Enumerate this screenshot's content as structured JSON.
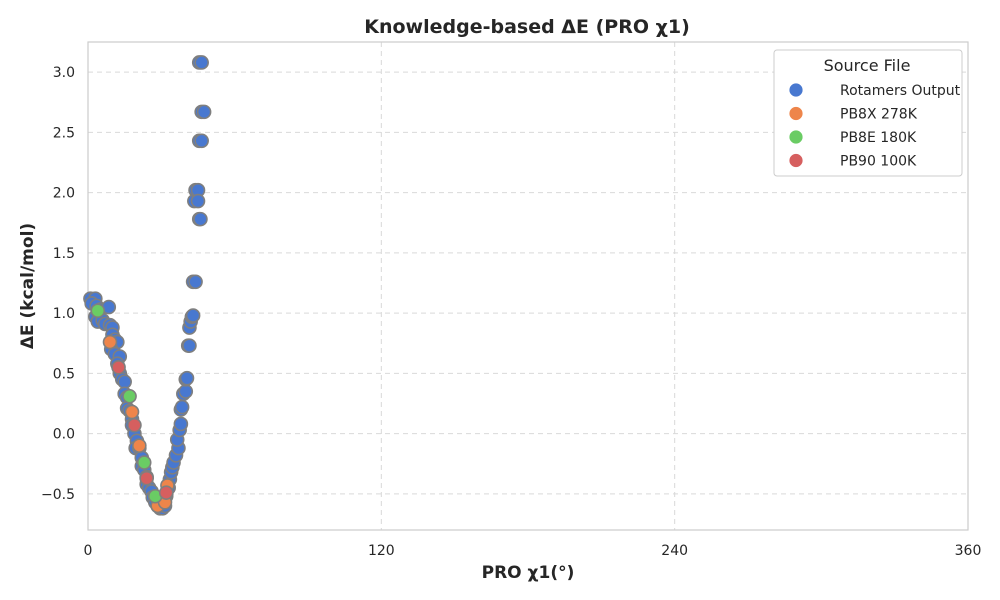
{
  "chart_data": {
    "type": "scatter",
    "title": "Knowledge-based ΔE (PRO χ1)",
    "xlabel": "PRO χ1(°)",
    "ylabel": "ΔE (kcal/mol)",
    "xlim": [
      0,
      360
    ],
    "ylim": [
      -0.8,
      3.25
    ],
    "xticks": [
      "0",
      "120",
      "240",
      "360"
    ],
    "yticks": [
      "−0.5",
      "0.0",
      "0.5",
      "1.0",
      "1.5",
      "2.0",
      "2.5",
      "3.0"
    ],
    "grid": true,
    "legend": {
      "title": "Source File",
      "placement": "top-right"
    },
    "series": [
      {
        "name": "Rotamers Output",
        "color": "#4878d0",
        "points": [
          [
            1,
            1.12
          ],
          [
            3,
            1.12
          ],
          [
            1.5,
            1.08
          ],
          [
            3.5,
            1.06
          ],
          [
            5,
            1.03
          ],
          [
            4,
            1.0
          ],
          [
            3,
            0.97
          ],
          [
            5,
            0.95
          ],
          [
            4,
            0.93
          ],
          [
            6,
            0.94
          ],
          [
            7,
            0.91
          ],
          [
            8.5,
            1.05
          ],
          [
            9,
            0.9
          ],
          [
            10,
            0.88
          ],
          [
            10,
            0.82
          ],
          [
            11,
            0.78
          ],
          [
            12,
            0.76
          ],
          [
            9.5,
            0.7
          ],
          [
            11,
            0.66
          ],
          [
            13,
            0.64
          ],
          [
            12,
            0.58
          ],
          [
            13,
            0.5
          ],
          [
            14,
            0.45
          ],
          [
            15,
            0.43
          ],
          [
            15,
            0.33
          ],
          [
            16,
            0.3
          ],
          [
            16,
            0.21
          ],
          [
            17,
            0.19
          ],
          [
            18,
            0.12
          ],
          [
            18,
            0.07
          ],
          [
            19,
            0.0
          ],
          [
            20,
            -0.06
          ],
          [
            19.5,
            -0.12
          ],
          [
            21,
            -0.12
          ],
          [
            22,
            -0.2
          ],
          [
            22,
            -0.27
          ],
          [
            23,
            -0.3
          ],
          [
            24,
            -0.36
          ],
          [
            24,
            -0.42
          ],
          [
            25,
            -0.45
          ],
          [
            26,
            -0.48
          ],
          [
            26.5,
            -0.53
          ],
          [
            27.5,
            -0.57
          ],
          [
            28.5,
            -0.6
          ],
          [
            29.5,
            -0.62
          ],
          [
            30.5,
            -0.62
          ],
          [
            31.5,
            -0.6
          ],
          [
            32,
            -0.52
          ],
          [
            33,
            -0.45
          ],
          [
            33.5,
            -0.38
          ],
          [
            34,
            -0.32
          ],
          [
            34.5,
            -0.28
          ],
          [
            35,
            -0.24
          ],
          [
            36,
            -0.18
          ],
          [
            37,
            -0.12
          ],
          [
            36.5,
            -0.05
          ],
          [
            37.5,
            0.03
          ],
          [
            38,
            0.08
          ],
          [
            38,
            0.2
          ],
          [
            38.5,
            0.22
          ],
          [
            39,
            0.33
          ],
          [
            40,
            0.35
          ],
          [
            40,
            0.45
          ],
          [
            40.5,
            0.46
          ],
          [
            41,
            0.73
          ],
          [
            41.5,
            0.73
          ],
          [
            41.5,
            0.88
          ],
          [
            42,
            0.93
          ],
          [
            42.5,
            0.97
          ],
          [
            43,
            0.98
          ],
          [
            43,
            1.26
          ],
          [
            44,
            1.26
          ],
          [
            43.5,
            1.93
          ],
          [
            44,
            2.02
          ],
          [
            45,
            2.02
          ],
          [
            45,
            1.93
          ],
          [
            45.5,
            1.78
          ],
          [
            46,
            1.78
          ],
          [
            45.5,
            2.43
          ],
          [
            46.5,
            2.43
          ],
          [
            46.5,
            2.67
          ],
          [
            47.5,
            2.67
          ],
          [
            45.5,
            3.08
          ],
          [
            46.5,
            3.08
          ]
        ]
      },
      {
        "name": "PB8X 278K",
        "color": "#ee854a",
        "points": [
          [
            9,
            0.76
          ],
          [
            18,
            0.18
          ],
          [
            21,
            -0.1
          ],
          [
            28.5,
            -0.6
          ],
          [
            32.5,
            -0.43
          ],
          [
            32,
            -0.5
          ],
          [
            31.5,
            -0.57
          ]
        ]
      },
      {
        "name": "PB8E 180K",
        "color": "#6acc64",
        "points": [
          [
            4,
            1.02
          ],
          [
            17,
            0.31
          ],
          [
            23,
            -0.24
          ],
          [
            27.5,
            -0.52
          ]
        ]
      },
      {
        "name": "PB90 100K",
        "color": "#d65f5f",
        "points": [
          [
            12.5,
            0.55
          ],
          [
            19,
            0.07
          ],
          [
            24,
            -0.37
          ],
          [
            32,
            -0.49
          ]
        ]
      }
    ]
  }
}
